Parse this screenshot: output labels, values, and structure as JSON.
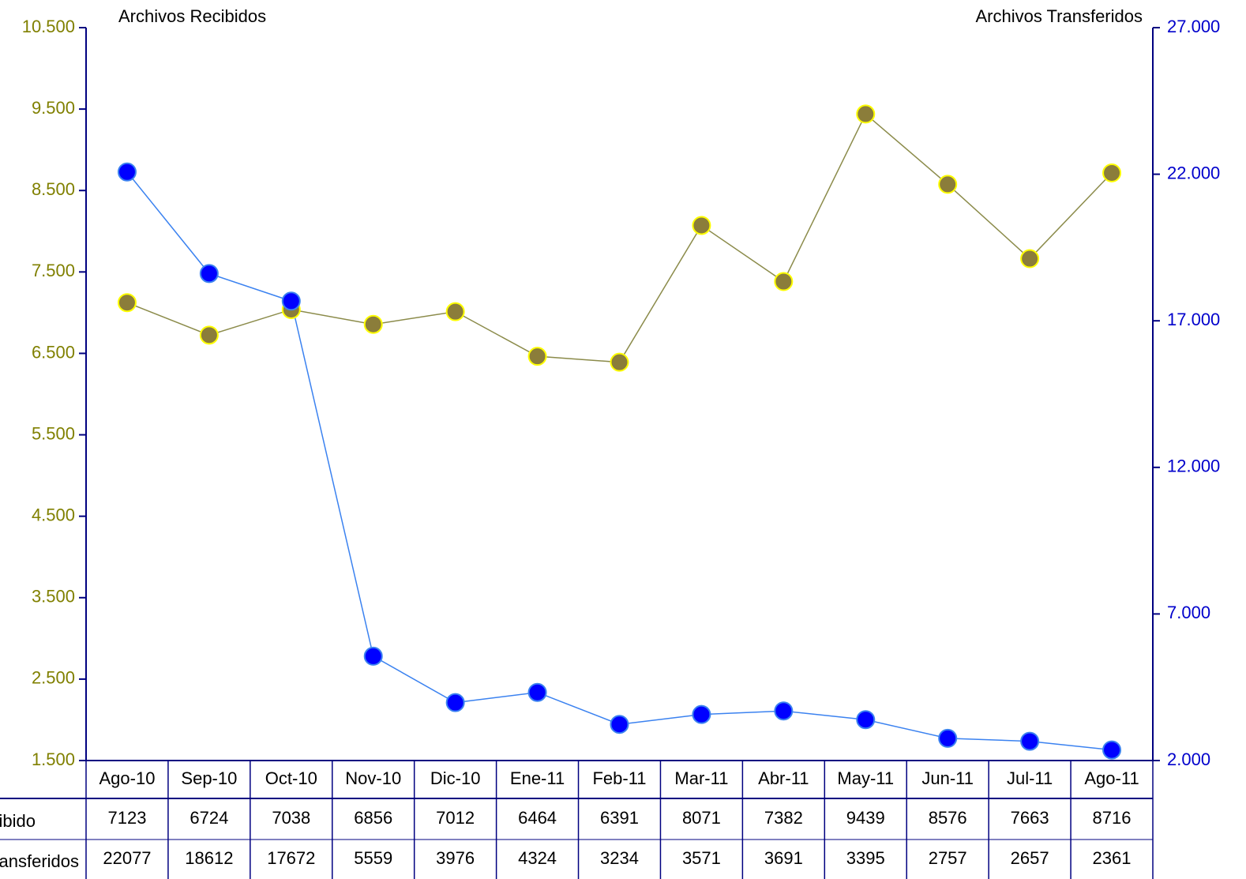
{
  "chart_data": {
    "type": "line",
    "y_title": "Archivos Recibidos",
    "y2_title": "Archivos Transferidos",
    "categories": [
      "Ago-10",
      "Sep-10",
      "Oct-10",
      "Nov-10",
      "Dic-10",
      "Ene-11",
      "Feb-11",
      "Mar-11",
      "Abr-11",
      "May-11",
      "Jun-11",
      "Jul-11",
      "Ago-11"
    ],
    "series": [
      {
        "name": "Recibido",
        "color": "#8b7d3a",
        "line_color": "#8b8b4a",
        "marker_edge": "#ffff00",
        "values": [
          7123,
          6724,
          7038,
          6856,
          7012,
          6464,
          6391,
          8071,
          7382,
          9439,
          8576,
          7663,
          8716
        ]
      },
      {
        "name": "Transferidos",
        "color": "#0000ff",
        "line_color": "#3b82f0",
        "marker_edge": "#3b82f0",
        "axis": "y2",
        "values": [
          22077,
          18612,
          17672,
          5559,
          3976,
          4324,
          3234,
          3571,
          3691,
          3395,
          2757,
          2657,
          2361
        ]
      }
    ],
    "ylim": [
      1500,
      10500
    ],
    "yticks": [
      {
        "value": 1500,
        "label": "1.500"
      },
      {
        "value": 2500,
        "label": "2.500"
      },
      {
        "value": 3500,
        "label": "3.500"
      },
      {
        "value": 4500,
        "label": "4.500"
      },
      {
        "value": 5500,
        "label": "5.500"
      },
      {
        "value": 6500,
        "label": "6.500"
      },
      {
        "value": 7500,
        "label": "7.500"
      },
      {
        "value": 8500,
        "label": "8.500"
      },
      {
        "value": 9500,
        "label": "9.500"
      },
      {
        "value": 10500,
        "label": "10.500"
      }
    ],
    "y_color": "#808000",
    "y2lim": [
      2000,
      27000
    ],
    "y2ticks": [
      {
        "value": 2000,
        "label": "2.000"
      },
      {
        "value": 7000,
        "label": "7.000"
      },
      {
        "value": 12000,
        "label": "12.000"
      },
      {
        "value": 17000,
        "label": "17.000"
      },
      {
        "value": 22000,
        "label": "22.000"
      },
      {
        "value": 27000,
        "label": "27.000"
      }
    ],
    "y2_color": "#0000cc",
    "axis_color": "#000080",
    "data_table": true
  }
}
